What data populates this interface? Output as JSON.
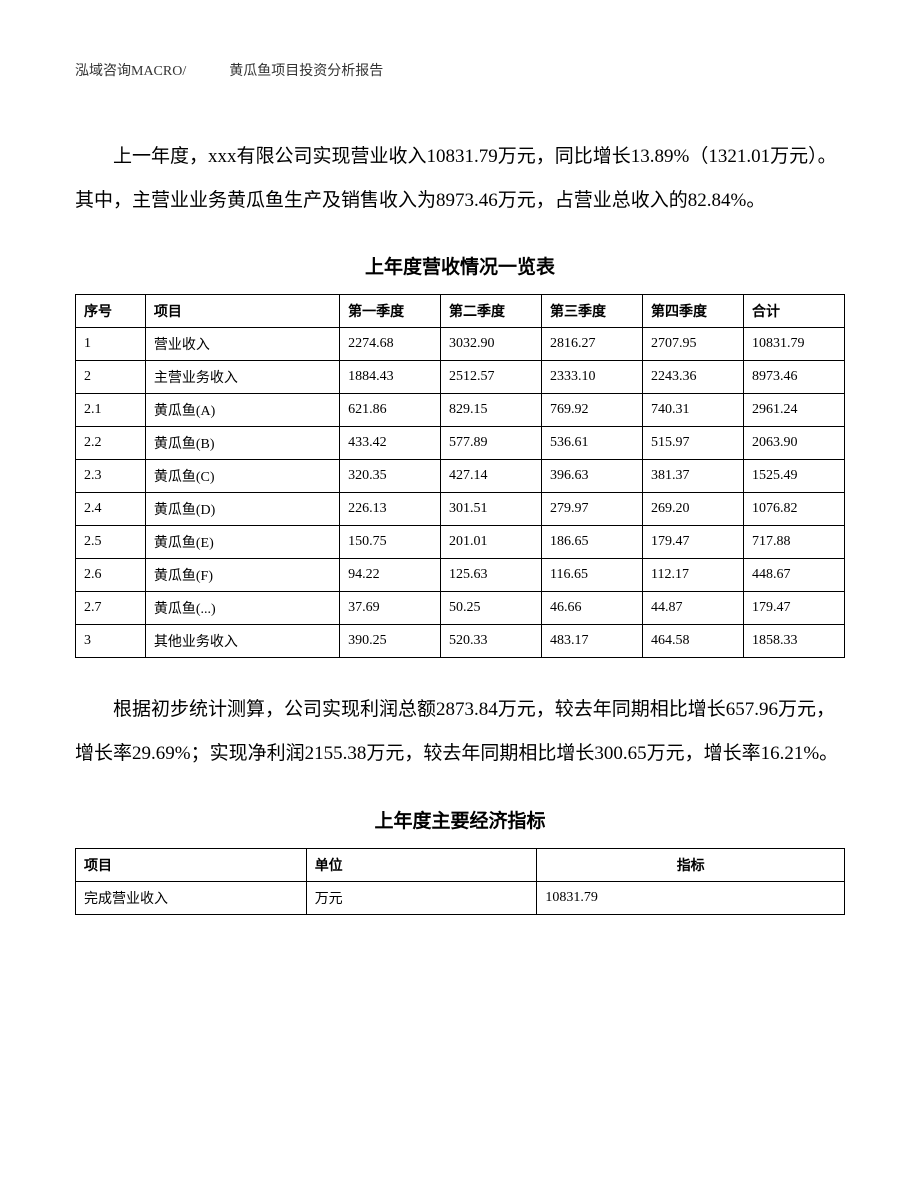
{
  "header": {
    "left": "泓域咨询MACRO/",
    "right": "黄瓜鱼项目投资分析报告"
  },
  "paragraph1": "上一年度，xxx有限公司实现营业收入10831.79万元，同比增长13.89%（1321.01万元）。其中，主营业业务黄瓜鱼生产及销售收入为8973.46万元，占营业总收入的82.84%。",
  "table1": {
    "title": "上年度营收情况一览表",
    "columns": [
      "序号",
      "项目",
      "第一季度",
      "第二季度",
      "第三季度",
      "第四季度",
      "合计"
    ],
    "rows": [
      [
        "1",
        "营业收入",
        "2274.68",
        "3032.90",
        "2816.27",
        "2707.95",
        "10831.79"
      ],
      [
        "2",
        "主营业务收入",
        "1884.43",
        "2512.57",
        "2333.10",
        "2243.36",
        "8973.46"
      ],
      [
        "2.1",
        "黄瓜鱼(A)",
        "621.86",
        "829.15",
        "769.92",
        "740.31",
        "2961.24"
      ],
      [
        "2.2",
        "黄瓜鱼(B)",
        "433.42",
        "577.89",
        "536.61",
        "515.97",
        "2063.90"
      ],
      [
        "2.3",
        "黄瓜鱼(C)",
        "320.35",
        "427.14",
        "396.63",
        "381.37",
        "1525.49"
      ],
      [
        "2.4",
        "黄瓜鱼(D)",
        "226.13",
        "301.51",
        "279.97",
        "269.20",
        "1076.82"
      ],
      [
        "2.5",
        "黄瓜鱼(E)",
        "150.75",
        "201.01",
        "186.65",
        "179.47",
        "717.88"
      ],
      [
        "2.6",
        "黄瓜鱼(F)",
        "94.22",
        "125.63",
        "116.65",
        "112.17",
        "448.67"
      ],
      [
        "2.7",
        "黄瓜鱼(...)",
        "37.69",
        "50.25",
        "46.66",
        "44.87",
        "179.47"
      ],
      [
        "3",
        "其他业务收入",
        "390.25",
        "520.33",
        "483.17",
        "464.58",
        "1858.33"
      ]
    ]
  },
  "paragraph2": "根据初步统计测算，公司实现利润总额2873.84万元，较去年同期相比增长657.96万元，增长率29.69%；实现净利润2155.38万元，较去年同期相比增长300.65万元，增长率16.21%。",
  "table2": {
    "title": "上年度主要经济指标",
    "columns": [
      "项目",
      "单位",
      "指标"
    ],
    "rows": [
      [
        "完成营业收入",
        "万元",
        "10831.79"
      ]
    ]
  }
}
